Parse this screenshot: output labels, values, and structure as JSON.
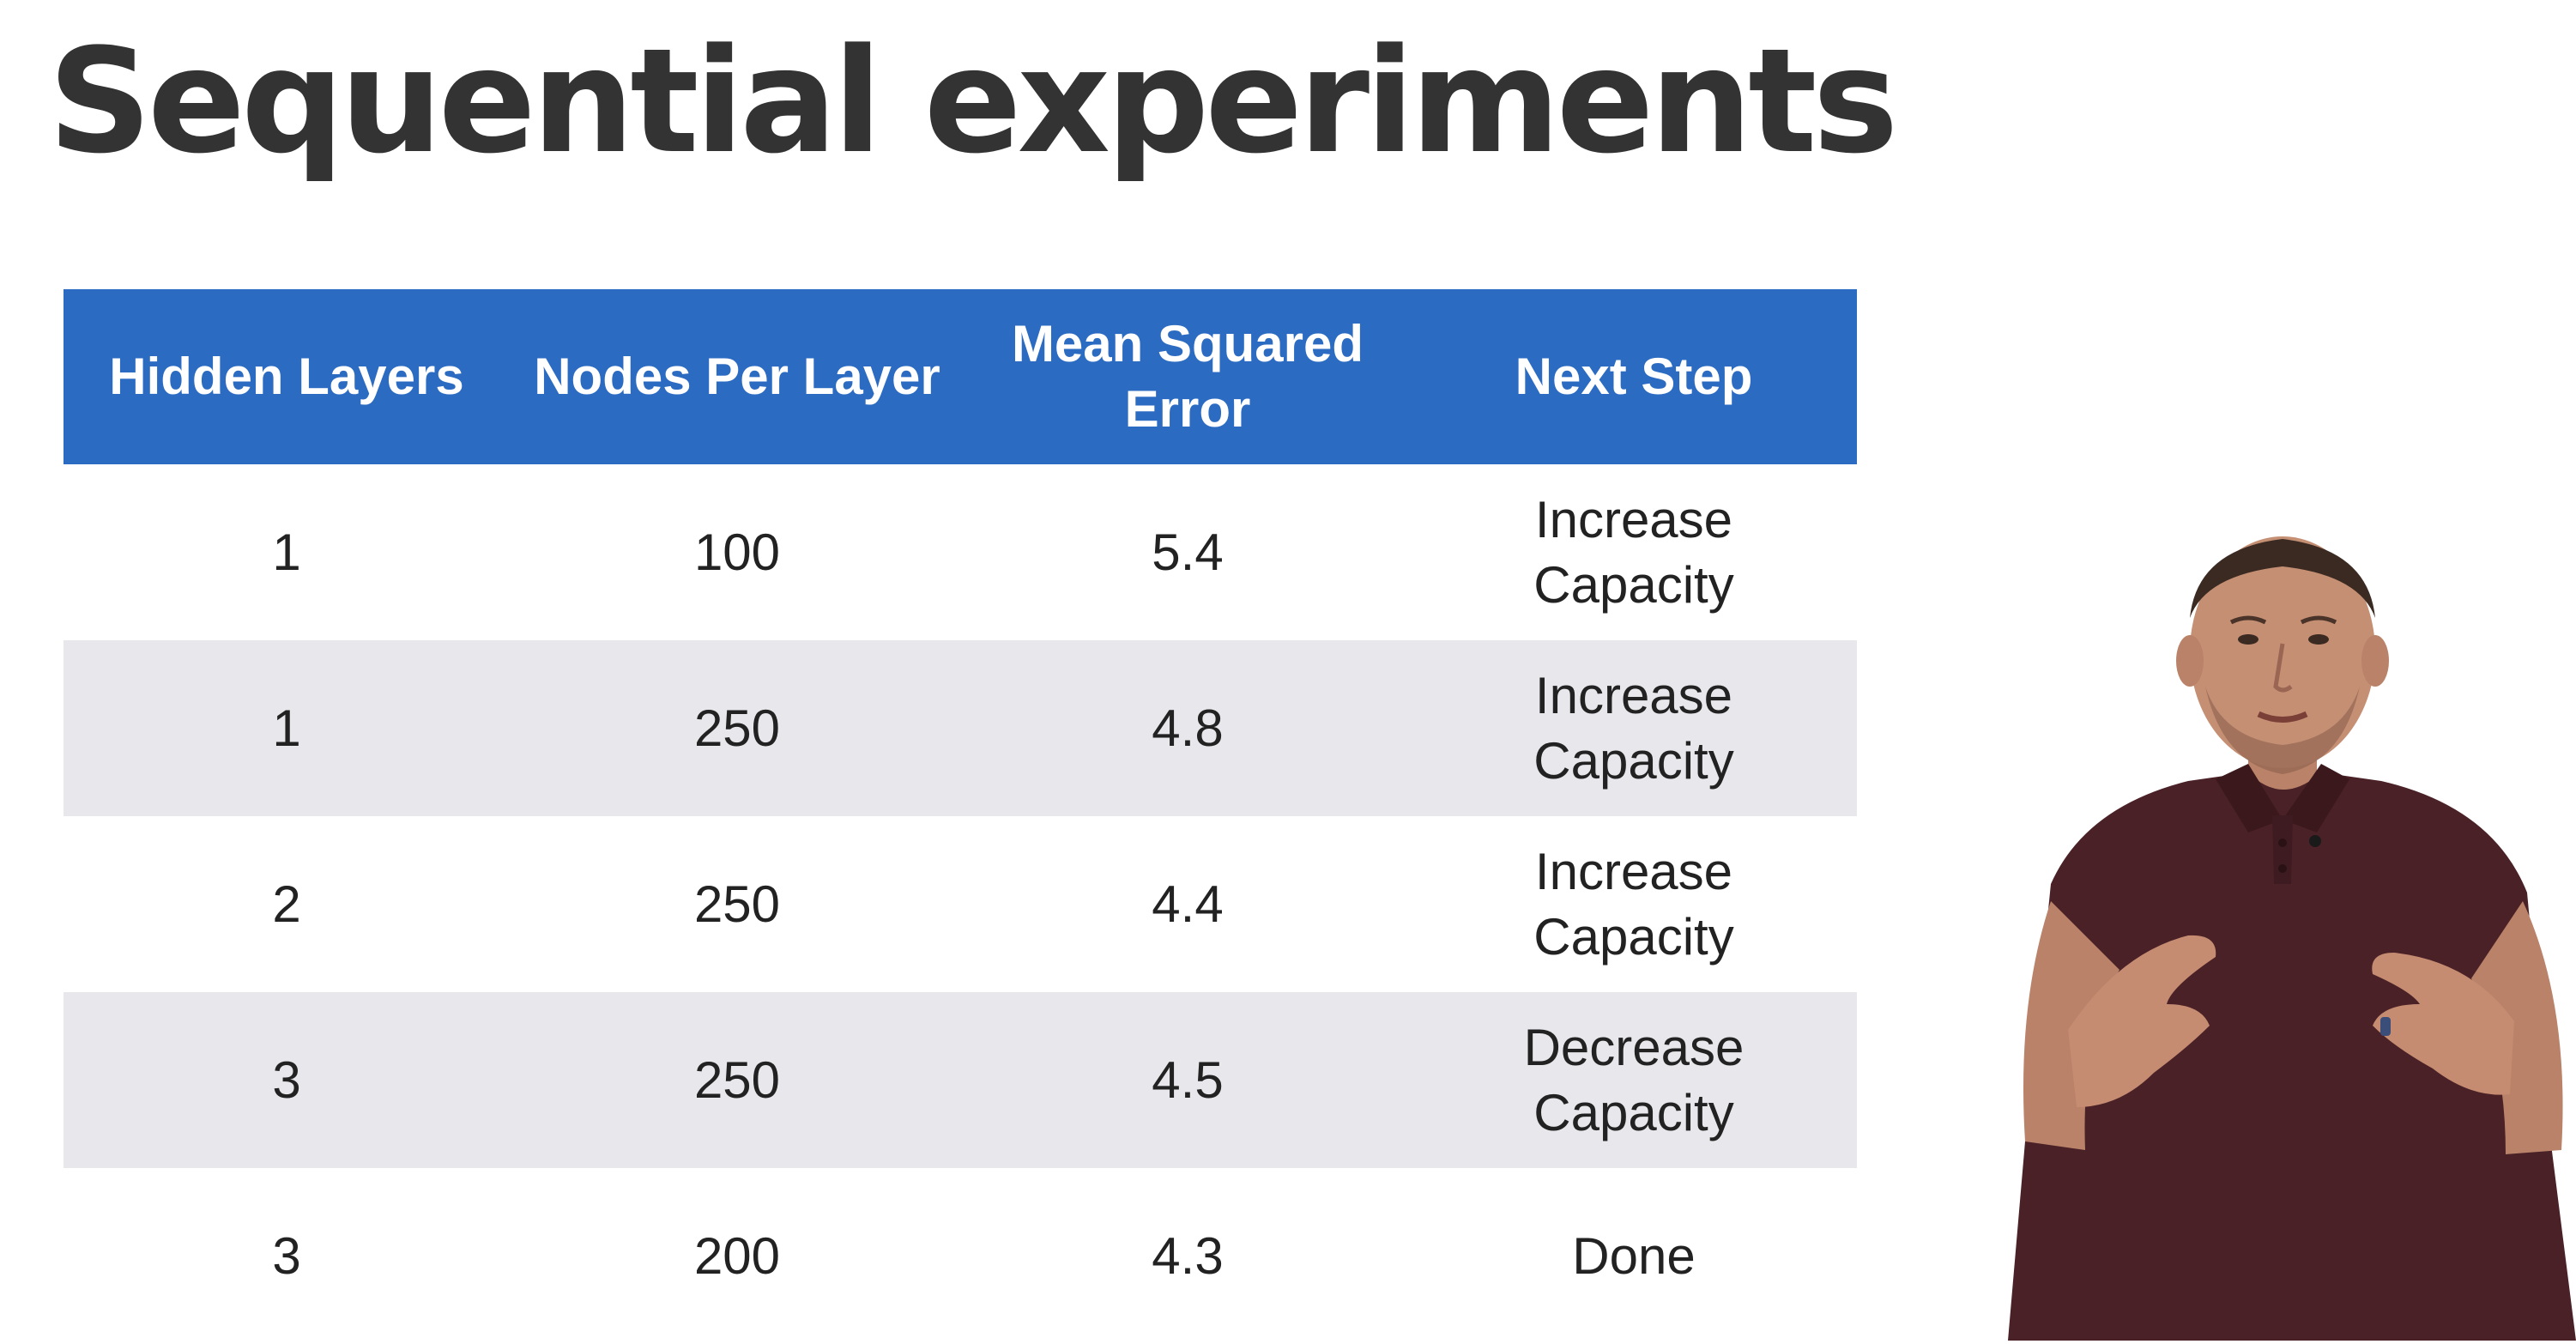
{
  "slide": {
    "title": "Sequential experiments"
  },
  "table": {
    "headers": [
      [
        "Hidden Layers"
      ],
      [
        "Nodes Per Layer"
      ],
      [
        "Mean Squared",
        "Error"
      ],
      [
        "Next Step"
      ]
    ],
    "rows": [
      {
        "hidden_layers": "1",
        "nodes_per_layer": "100",
        "mse": "5.4",
        "next_step": [
          "Increase",
          "Capacity"
        ]
      },
      {
        "hidden_layers": "1",
        "nodes_per_layer": "250",
        "mse": "4.8",
        "next_step": [
          "Increase",
          "Capacity"
        ]
      },
      {
        "hidden_layers": "2",
        "nodes_per_layer": "250",
        "mse": "4.4",
        "next_step": [
          "Increase",
          "Capacity"
        ]
      },
      {
        "hidden_layers": "3",
        "nodes_per_layer": "250",
        "mse": "4.5",
        "next_step": [
          "Decrease",
          "Capacity"
        ]
      },
      {
        "hidden_layers": "3",
        "nodes_per_layer": "200",
        "mse": "4.3",
        "next_step": [
          "Done"
        ]
      }
    ]
  },
  "colors": {
    "header_background": "#2c6bc2",
    "header_text": "#ffffff",
    "shaded_row": "#e7e7ec",
    "title_text": "#333333",
    "presenter_shirt": "#4a2126"
  }
}
